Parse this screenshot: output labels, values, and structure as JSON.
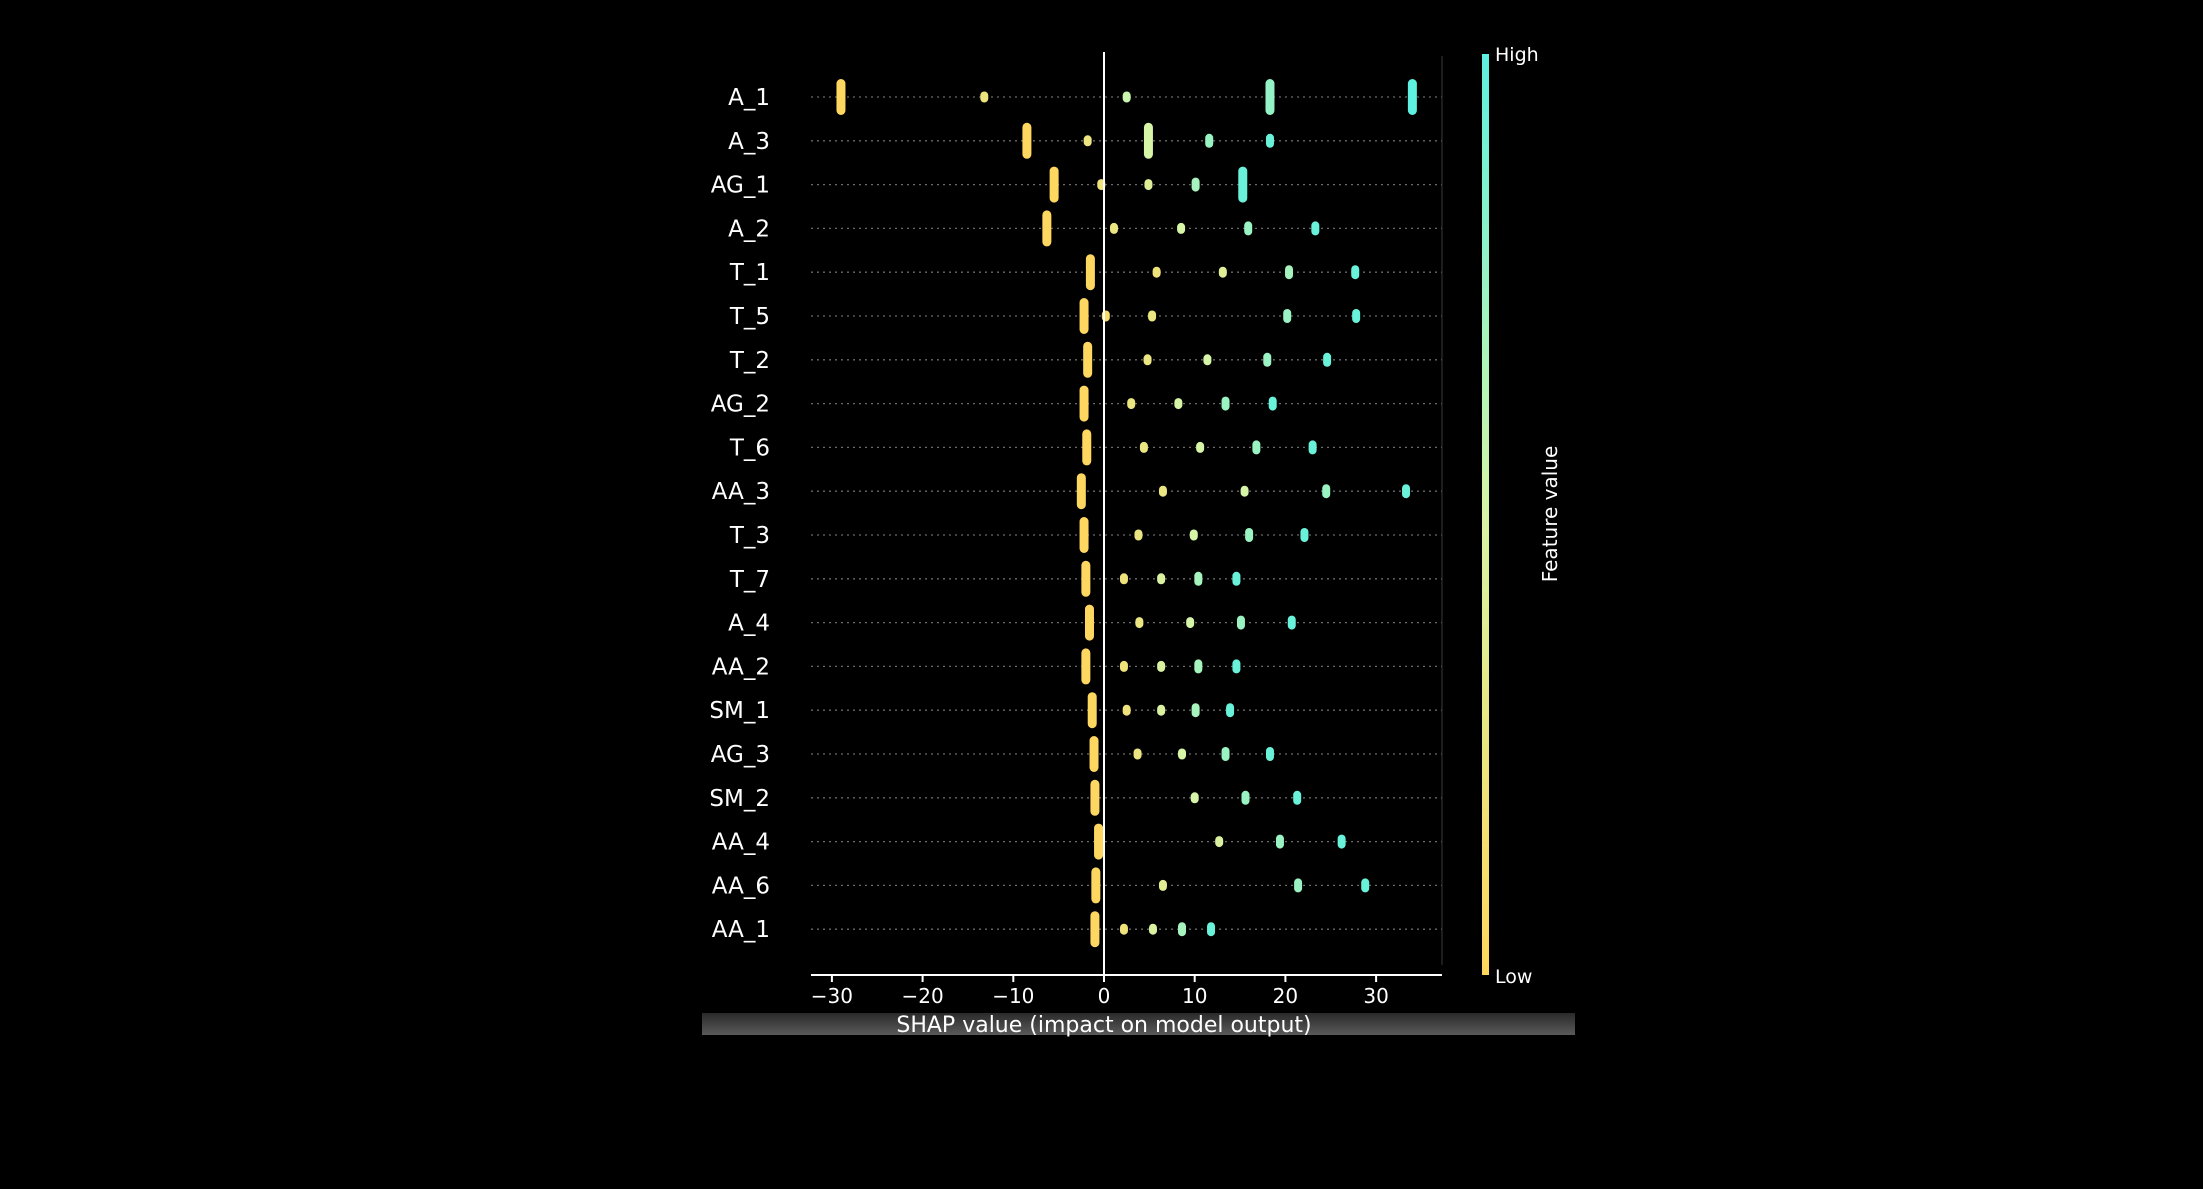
{
  "chart_data": {
    "type": "scatter",
    "xlabel": "SHAP value (impact on model output)",
    "xlim": [
      -32,
      37
    ],
    "xticks": [
      -30,
      -20,
      -10,
      0,
      10,
      20,
      30
    ],
    "xtick_labels": [
      "−30",
      "−20",
      "−10",
      "0",
      "10",
      "20",
      "30"
    ],
    "colorbar": {
      "label": "Feature value",
      "high_label": "High",
      "low_label": "Low",
      "low_color": "#ffd65c",
      "high_color": "#5ef0e0"
    },
    "grid": "dotted horizontal per feature",
    "features": [
      {
        "name": "A_1",
        "points": [
          [
            -29,
            0.02,
            1
          ],
          [
            -13.2,
            0.22,
            0
          ],
          [
            2.5,
            0.55,
            0
          ],
          [
            18.3,
            0.78,
            1
          ],
          [
            34,
            1.0,
            1
          ]
        ]
      },
      {
        "name": "A_3",
        "points": [
          [
            -8.5,
            0.02,
            1
          ],
          [
            -1.8,
            0.25,
            0
          ],
          [
            4.9,
            0.5,
            1
          ],
          [
            11.6,
            0.75,
            0
          ],
          [
            18.3,
            0.95,
            0
          ]
        ]
      },
      {
        "name": "AG_1",
        "points": [
          [
            -5.5,
            0.02,
            1
          ],
          [
            -0.3,
            0.2,
            0
          ],
          [
            4.9,
            0.4,
            0
          ],
          [
            10.1,
            0.7,
            0
          ],
          [
            15.3,
            0.95,
            1
          ]
        ]
      },
      {
        "name": "A_2",
        "points": [
          [
            -6.3,
            0.02,
            1
          ],
          [
            1.1,
            0.25,
            0
          ],
          [
            8.5,
            0.5,
            0
          ],
          [
            15.9,
            0.75,
            0
          ],
          [
            23.3,
            0.95,
            0
          ]
        ]
      },
      {
        "name": "T_1",
        "points": [
          [
            -1.5,
            0.02,
            1
          ],
          [
            5.8,
            0.2,
            0
          ],
          [
            13.1,
            0.4,
            0
          ],
          [
            20.4,
            0.7,
            0
          ],
          [
            27.7,
            0.95,
            0
          ]
        ]
      },
      {
        "name": "T_5",
        "points": [
          [
            -2.2,
            0.02,
            1
          ],
          [
            0.2,
            0.1,
            0
          ],
          [
            5.3,
            0.25,
            0
          ],
          [
            20.2,
            0.75,
            0
          ],
          [
            27.8,
            0.95,
            0
          ]
        ]
      },
      {
        "name": "T_2",
        "points": [
          [
            -1.8,
            0.02,
            1
          ],
          [
            4.8,
            0.25,
            0
          ],
          [
            11.4,
            0.5,
            0
          ],
          [
            18,
            0.75,
            0
          ],
          [
            24.6,
            0.95,
            0
          ]
        ]
      },
      {
        "name": "AG_2",
        "points": [
          [
            -2.2,
            0.02,
            1
          ],
          [
            3,
            0.25,
            0
          ],
          [
            8.2,
            0.5,
            0
          ],
          [
            13.4,
            0.75,
            0
          ],
          [
            18.6,
            0.95,
            0
          ]
        ]
      },
      {
        "name": "T_6",
        "points": [
          [
            -1.9,
            0.02,
            1
          ],
          [
            4.4,
            0.25,
            0
          ],
          [
            10.6,
            0.5,
            0
          ],
          [
            16.8,
            0.75,
            0
          ],
          [
            23,
            0.95,
            0
          ]
        ]
      },
      {
        "name": "AA_3",
        "points": [
          [
            -2.5,
            0.02,
            1
          ],
          [
            6.5,
            0.25,
            0
          ],
          [
            15.5,
            0.5,
            0
          ],
          [
            24.5,
            0.75,
            0
          ],
          [
            33.3,
            0.95,
            0
          ]
        ]
      },
      {
        "name": "T_3",
        "points": [
          [
            -2.2,
            0.02,
            1
          ],
          [
            3.8,
            0.25,
            0
          ],
          [
            9.9,
            0.5,
            0
          ],
          [
            16,
            0.75,
            0
          ],
          [
            22.1,
            0.95,
            0
          ]
        ]
      },
      {
        "name": "T_7",
        "points": [
          [
            -2.0,
            0.02,
            1
          ],
          [
            2.2,
            0.2,
            0
          ],
          [
            6.3,
            0.45,
            0
          ],
          [
            10.4,
            0.7,
            0
          ],
          [
            14.6,
            0.95,
            0
          ]
        ]
      },
      {
        "name": "A_4",
        "points": [
          [
            -1.6,
            0.02,
            1
          ],
          [
            3.9,
            0.25,
            0
          ],
          [
            9.5,
            0.5,
            0
          ],
          [
            15.1,
            0.75,
            0
          ],
          [
            20.7,
            0.95,
            0
          ]
        ]
      },
      {
        "name": "AA_2",
        "points": [
          [
            -2.0,
            0.02,
            1
          ],
          [
            2.2,
            0.2,
            0
          ],
          [
            6.3,
            0.45,
            0
          ],
          [
            10.4,
            0.7,
            0
          ],
          [
            14.6,
            0.95,
            0
          ]
        ]
      },
      {
        "name": "SM_1",
        "points": [
          [
            -1.3,
            0.02,
            1
          ],
          [
            2.5,
            0.2,
            0
          ],
          [
            6.3,
            0.45,
            0
          ],
          [
            10.1,
            0.7,
            0
          ],
          [
            13.9,
            0.95,
            0
          ]
        ]
      },
      {
        "name": "AG_3",
        "points": [
          [
            -1.1,
            0.02,
            1
          ],
          [
            3.7,
            0.25,
            0
          ],
          [
            8.6,
            0.5,
            0
          ],
          [
            13.4,
            0.75,
            0
          ],
          [
            18.3,
            0.95,
            0
          ]
        ]
      },
      {
        "name": "SM_2",
        "points": [
          [
            -1.0,
            0.02,
            1
          ],
          [
            10,
            0.5,
            0
          ],
          [
            15.6,
            0.75,
            0
          ],
          [
            21.3,
            0.95,
            0
          ]
        ]
      },
      {
        "name": "AA_4",
        "points": [
          [
            -0.6,
            0.02,
            1
          ],
          [
            12.7,
            0.45,
            0
          ],
          [
            19.4,
            0.75,
            0
          ],
          [
            26.2,
            0.95,
            0
          ]
        ]
      },
      {
        "name": "AA_6",
        "points": [
          [
            -0.9,
            0.02,
            1
          ],
          [
            6.5,
            0.35,
            0
          ],
          [
            21.4,
            0.75,
            0
          ],
          [
            28.8,
            0.95,
            0
          ]
        ]
      },
      {
        "name": "AA_1",
        "points": [
          [
            -1.0,
            0.02,
            1
          ],
          [
            2.2,
            0.2,
            0
          ],
          [
            5.4,
            0.45,
            0
          ],
          [
            8.6,
            0.7,
            0
          ],
          [
            11.8,
            0.95,
            0
          ]
        ]
      }
    ]
  }
}
